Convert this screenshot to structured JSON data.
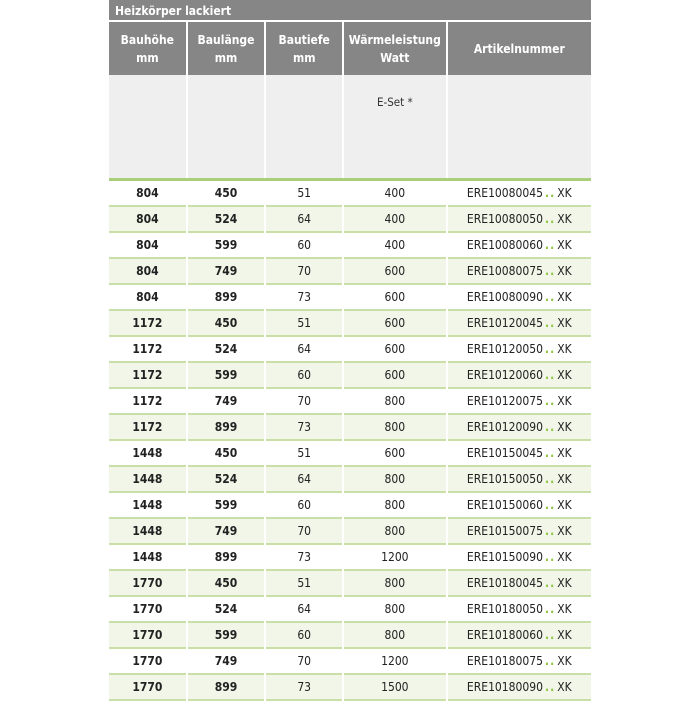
{
  "title": "Heizkörper lackiert",
  "headers": [
    "Bauhöhe\nmm",
    "Baulänge\nmm",
    "Bautiefe\nmm",
    "Wärmeleistung\nWatt",
    "Artikelnummer"
  ],
  "subheader": [
    "",
    "",
    "",
    "E-Set *",
    ""
  ],
  "colors": {
    "header_bg": "#868686",
    "accent_green": "#8cc43f",
    "row_alt": "#f1f6e8"
  },
  "rows": [
    {
      "hoehe": "804",
      "laenge": "450",
      "tiefe": "51",
      "watt": "400",
      "artikel": "ERE10080045",
      "suffix": "XK"
    },
    {
      "hoehe": "804",
      "laenge": "524",
      "tiefe": "64",
      "watt": "400",
      "artikel": "ERE10080050",
      "suffix": "XK"
    },
    {
      "hoehe": "804",
      "laenge": "599",
      "tiefe": "60",
      "watt": "400",
      "artikel": "ERE10080060",
      "suffix": "XK"
    },
    {
      "hoehe": "804",
      "laenge": "749",
      "tiefe": "70",
      "watt": "600",
      "artikel": "ERE10080075",
      "suffix": "XK"
    },
    {
      "hoehe": "804",
      "laenge": "899",
      "tiefe": "73",
      "watt": "600",
      "artikel": "ERE10080090",
      "suffix": "XK"
    },
    {
      "hoehe": "1172",
      "laenge": "450",
      "tiefe": "51",
      "watt": "600",
      "artikel": "ERE10120045",
      "suffix": "XK"
    },
    {
      "hoehe": "1172",
      "laenge": "524",
      "tiefe": "64",
      "watt": "600",
      "artikel": "ERE10120050",
      "suffix": "XK"
    },
    {
      "hoehe": "1172",
      "laenge": "599",
      "tiefe": "60",
      "watt": "600",
      "artikel": "ERE10120060",
      "suffix": "XK"
    },
    {
      "hoehe": "1172",
      "laenge": "749",
      "tiefe": "70",
      "watt": "800",
      "artikel": "ERE10120075",
      "suffix": "XK"
    },
    {
      "hoehe": "1172",
      "laenge": "899",
      "tiefe": "73",
      "watt": "800",
      "artikel": "ERE10120090",
      "suffix": "XK"
    },
    {
      "hoehe": "1448",
      "laenge": "450",
      "tiefe": "51",
      "watt": "600",
      "artikel": "ERE10150045",
      "suffix": "XK"
    },
    {
      "hoehe": "1448",
      "laenge": "524",
      "tiefe": "64",
      "watt": "800",
      "artikel": "ERE10150050",
      "suffix": "XK"
    },
    {
      "hoehe": "1448",
      "laenge": "599",
      "tiefe": "60",
      "watt": "800",
      "artikel": "ERE10150060",
      "suffix": "XK"
    },
    {
      "hoehe": "1448",
      "laenge": "749",
      "tiefe": "70",
      "watt": "800",
      "artikel": "ERE10150075",
      "suffix": "XK"
    },
    {
      "hoehe": "1448",
      "laenge": "899",
      "tiefe": "73",
      "watt": "1200",
      "artikel": "ERE10150090",
      "suffix": "XK"
    },
    {
      "hoehe": "1770",
      "laenge": "450",
      "tiefe": "51",
      "watt": "800",
      "artikel": "ERE10180045",
      "suffix": "XK"
    },
    {
      "hoehe": "1770",
      "laenge": "524",
      "tiefe": "64",
      "watt": "800",
      "artikel": "ERE10180050",
      "suffix": "XK"
    },
    {
      "hoehe": "1770",
      "laenge": "599",
      "tiefe": "60",
      "watt": "800",
      "artikel": "ERE10180060",
      "suffix": "XK"
    },
    {
      "hoehe": "1770",
      "laenge": "749",
      "tiefe": "70",
      "watt": "1200",
      "artikel": "ERE10180075",
      "suffix": "XK"
    },
    {
      "hoehe": "1770",
      "laenge": "899",
      "tiefe": "73",
      "watt": "1500",
      "artikel": "ERE10180090",
      "suffix": "XK"
    }
  ]
}
